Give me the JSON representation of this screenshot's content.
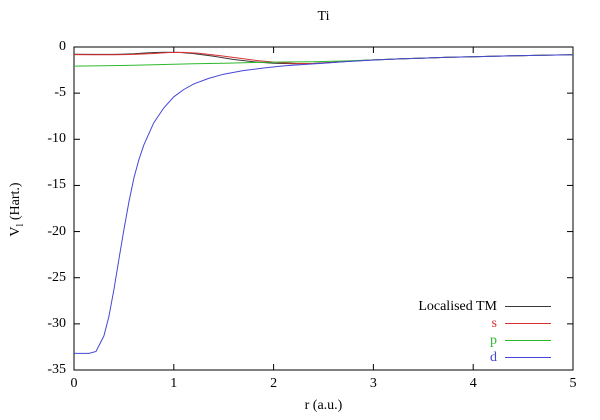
{
  "chart_data": {
    "type": "line",
    "title": "Ti",
    "xlabel": "r (a.u.)",
    "ylabel": {
      "base": "V",
      "sub": "l",
      "rest": " (Hart.)"
    },
    "xlim": [
      0,
      5
    ],
    "ylim": [
      -35,
      0
    ],
    "xticks": [
      "0",
      "1",
      "2",
      "3",
      "4",
      "5"
    ],
    "yticks": [
      "0",
      "-5",
      "-10",
      "-15",
      "-20",
      "-25",
      "-30",
      "-35"
    ],
    "grid": false,
    "legend_position": "bottom-right-inside",
    "axis_color": "#000000",
    "background_color": "#ffffff",
    "series": [
      {
        "name": "Localised TM",
        "color": "#3a3a3a",
        "points": [
          [
            0,
            -0.78
          ],
          [
            0.2,
            -0.8
          ],
          [
            0.4,
            -0.8
          ],
          [
            0.6,
            -0.74
          ],
          [
            0.75,
            -0.62
          ],
          [
            0.9,
            -0.56
          ],
          [
            1.05,
            -0.58
          ],
          [
            1.2,
            -0.72
          ],
          [
            1.4,
            -1.0
          ],
          [
            1.6,
            -1.35
          ],
          [
            1.8,
            -1.6
          ],
          [
            2.0,
            -1.75
          ],
          [
            2.2,
            -1.82
          ],
          [
            2.4,
            -1.78
          ],
          [
            2.6,
            -1.65
          ],
          [
            2.8,
            -1.52
          ],
          [
            3.0,
            -1.4
          ],
          [
            3.25,
            -1.29
          ],
          [
            3.5,
            -1.2
          ],
          [
            3.75,
            -1.12
          ],
          [
            4.0,
            -1.05
          ],
          [
            4.25,
            -0.99
          ],
          [
            4.5,
            -0.93
          ],
          [
            4.75,
            -0.88
          ],
          [
            5.0,
            -0.84
          ]
        ]
      },
      {
        "name": "s",
        "color": "#d93030",
        "points": [
          [
            0,
            -0.82
          ],
          [
            0.2,
            -0.84
          ],
          [
            0.4,
            -0.84
          ],
          [
            0.6,
            -0.8
          ],
          [
            0.8,
            -0.7
          ],
          [
            0.95,
            -0.6
          ],
          [
            1.1,
            -0.58
          ],
          [
            1.25,
            -0.68
          ],
          [
            1.45,
            -0.92
          ],
          [
            1.65,
            -1.2
          ],
          [
            1.85,
            -1.48
          ],
          [
            2.05,
            -1.68
          ],
          [
            2.25,
            -1.8
          ],
          [
            2.45,
            -1.78
          ],
          [
            2.65,
            -1.62
          ],
          [
            2.85,
            -1.5
          ],
          [
            3.0,
            -1.4
          ],
          [
            3.25,
            -1.29
          ],
          [
            3.5,
            -1.2
          ],
          [
            3.75,
            -1.12
          ],
          [
            4.0,
            -1.05
          ],
          [
            4.25,
            -0.99
          ],
          [
            4.5,
            -0.93
          ],
          [
            4.75,
            -0.88
          ],
          [
            5.0,
            -0.84
          ]
        ]
      },
      {
        "name": "p",
        "color": "#2eb82e",
        "points": [
          [
            0,
            -2.07
          ],
          [
            0.3,
            -2.04
          ],
          [
            0.6,
            -1.98
          ],
          [
            0.9,
            -1.9
          ],
          [
            1.2,
            -1.82
          ],
          [
            1.5,
            -1.75
          ],
          [
            1.8,
            -1.68
          ],
          [
            2.1,
            -1.62
          ],
          [
            2.4,
            -1.6
          ],
          [
            2.7,
            -1.52
          ],
          [
            3.0,
            -1.4
          ],
          [
            3.25,
            -1.29
          ],
          [
            3.5,
            -1.2
          ],
          [
            3.75,
            -1.12
          ],
          [
            4.0,
            -1.05
          ],
          [
            4.25,
            -0.99
          ],
          [
            4.5,
            -0.93
          ],
          [
            4.75,
            -0.88
          ],
          [
            5.0,
            -0.84
          ]
        ]
      },
      {
        "name": "d",
        "color": "#4545d9",
        "points": [
          [
            0,
            -33.2
          ],
          [
            0.15,
            -33.2
          ],
          [
            0.22,
            -33.0
          ],
          [
            0.3,
            -31.3
          ],
          [
            0.35,
            -29.2
          ],
          [
            0.4,
            -26.3
          ],
          [
            0.45,
            -23.0
          ],
          [
            0.5,
            -19.8
          ],
          [
            0.55,
            -16.8
          ],
          [
            0.6,
            -14.2
          ],
          [
            0.65,
            -12.2
          ],
          [
            0.7,
            -10.6
          ],
          [
            0.8,
            -8.2
          ],
          [
            0.9,
            -6.6
          ],
          [
            1.0,
            -5.4
          ],
          [
            1.1,
            -4.6
          ],
          [
            1.2,
            -4.0
          ],
          [
            1.35,
            -3.4
          ],
          [
            1.5,
            -2.95
          ],
          [
            1.7,
            -2.55
          ],
          [
            1.9,
            -2.28
          ],
          [
            2.1,
            -2.05
          ],
          [
            2.3,
            -1.9
          ],
          [
            2.5,
            -1.76
          ],
          [
            2.7,
            -1.6
          ],
          [
            2.9,
            -1.47
          ],
          [
            3.1,
            -1.36
          ],
          [
            3.3,
            -1.27
          ],
          [
            3.5,
            -1.2
          ],
          [
            3.75,
            -1.12
          ],
          [
            4.0,
            -1.05
          ],
          [
            4.25,
            -0.99
          ],
          [
            4.5,
            -0.93
          ],
          [
            4.75,
            -0.88
          ],
          [
            5.0,
            -0.84
          ]
        ]
      }
    ]
  }
}
